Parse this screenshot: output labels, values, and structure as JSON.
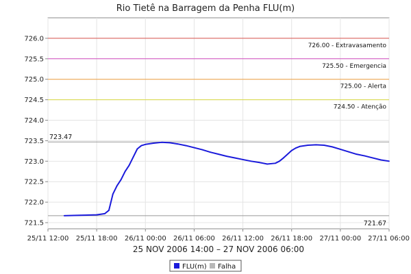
{
  "chart_data": {
    "type": "line",
    "title": "Rio Tietê na Barragem da Penha FLU(m)",
    "xlabel": "25 NOV 2006 14:00 – 27 NOV 2006 06:00",
    "ylabel": "",
    "ylim": [
      721.35,
      726.5
    ],
    "xlim": [
      0,
      42
    ],
    "x_ticks": [
      {
        "x": 0,
        "label": "25/11 12:00"
      },
      {
        "x": 6,
        "label": "25/11 18:00"
      },
      {
        "x": 12,
        "label": "26/11 00:00"
      },
      {
        "x": 18,
        "label": "26/11 06:00"
      },
      {
        "x": 24,
        "label": "26/11 12:00"
      },
      {
        "x": 30,
        "label": "26/11 18:00"
      },
      {
        "x": 36,
        "label": "27/11 00:00"
      },
      {
        "x": 42,
        "label": "27/11 06:00"
      }
    ],
    "y_ticks": [
      {
        "y": 721.5,
        "label": "721.5"
      },
      {
        "y": 722.0,
        "label": "722.0"
      },
      {
        "y": 722.5,
        "label": "722.5"
      },
      {
        "y": 723.0,
        "label": "723.0"
      },
      {
        "y": 723.5,
        "label": "723.5"
      },
      {
        "y": 724.0,
        "label": "724.0"
      },
      {
        "y": 724.5,
        "label": "724.5"
      },
      {
        "y": 725.0,
        "label": "725.0"
      },
      {
        "y": 725.5,
        "label": "725.5"
      },
      {
        "y": 726.0,
        "label": "726.0"
      }
    ],
    "thresholds": [
      {
        "y": 726.0,
        "label": "726.00 - Extravasamento",
        "color": "#d9534f"
      },
      {
        "y": 725.5,
        "label": "725.50 - Emergencia",
        "color": "#d24dbf"
      },
      {
        "y": 725.0,
        "label": "725.00 - Alerta",
        "color": "#f0a040"
      },
      {
        "y": 724.5,
        "label": "724.50 - Atenção",
        "color": "#d8d840"
      }
    ],
    "reference_lines": [
      {
        "y": 723.47,
        "label": "723.47",
        "color": "#999999"
      },
      {
        "y": 721.67,
        "label": "721.67",
        "color": "#999999"
      }
    ],
    "series": [
      {
        "name": "FLU(m)",
        "color": "#1a1adb",
        "points": [
          [
            2.0,
            721.67
          ],
          [
            4.0,
            721.68
          ],
          [
            6.0,
            721.69
          ],
          [
            7.0,
            721.72
          ],
          [
            7.5,
            721.8
          ],
          [
            8.0,
            722.2
          ],
          [
            8.5,
            722.4
          ],
          [
            9.0,
            722.55
          ],
          [
            9.5,
            722.75
          ],
          [
            10.0,
            722.9
          ],
          [
            10.5,
            723.1
          ],
          [
            11.0,
            723.3
          ],
          [
            11.5,
            723.38
          ],
          [
            12.0,
            723.41
          ],
          [
            13.0,
            723.44
          ],
          [
            14.0,
            723.46
          ],
          [
            15.0,
            723.45
          ],
          [
            16.0,
            723.42
          ],
          [
            17.0,
            723.38
          ],
          [
            18.0,
            723.33
          ],
          [
            19.0,
            723.28
          ],
          [
            20.0,
            723.22
          ],
          [
            21.0,
            723.17
          ],
          [
            22.0,
            723.12
          ],
          [
            23.0,
            723.08
          ],
          [
            24.0,
            723.04
          ],
          [
            25.0,
            723.0
          ],
          [
            26.0,
            722.97
          ],
          [
            27.0,
            722.93
          ],
          [
            28.0,
            722.95
          ],
          [
            28.5,
            723.0
          ],
          [
            29.0,
            723.08
          ],
          [
            29.5,
            723.17
          ],
          [
            30.0,
            723.26
          ],
          [
            30.5,
            723.32
          ],
          [
            31.0,
            723.36
          ],
          [
            32.0,
            723.39
          ],
          [
            33.0,
            723.4
          ],
          [
            34.0,
            723.39
          ],
          [
            35.0,
            723.35
          ],
          [
            36.0,
            723.29
          ],
          [
            37.0,
            723.23
          ],
          [
            38.0,
            723.17
          ],
          [
            39.0,
            723.13
          ],
          [
            40.0,
            723.08
          ],
          [
            41.0,
            723.03
          ],
          [
            42.0,
            723.0
          ]
        ]
      }
    ],
    "legend": {
      "placement": "bottom-center",
      "items": [
        {
          "label": "FLU(m)",
          "color": "#1a1adb"
        },
        {
          "label": "Falha",
          "color": "#b8b8b8"
        }
      ]
    },
    "grid": true
  }
}
